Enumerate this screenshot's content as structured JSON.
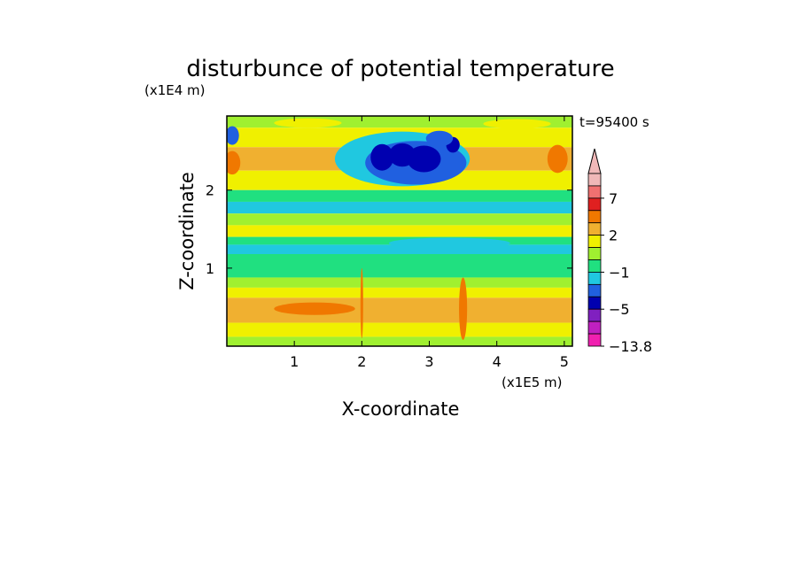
{
  "chart_data": {
    "type": "heatmap",
    "title": "disturbunce of potential temperature",
    "time_label": "t=95400 s",
    "xlabel": "X-coordinate",
    "ylabel": "Z-coordinate",
    "x_unit": "(x1E5 m)",
    "y_unit": "(x1E4 m)",
    "xlim": [
      0,
      5.12
    ],
    "ylim": [
      0,
      2.95
    ],
    "x_ticks": [
      "1",
      "2",
      "3",
      "4",
      "5"
    ],
    "y_ticks": [
      "1",
      "2"
    ],
    "colorbar_labels": [
      "7",
      "2",
      "−1",
      "−5",
      "−13.8"
    ],
    "colorbar_colors": [
      "#f0b8b8",
      "#f07070",
      "#e02020",
      "#f07800",
      "#f0b030",
      "#f0f000",
      "#a0f030",
      "#20e080",
      "#20c8e0",
      "#2060e0",
      "#0000b0",
      "#8020c0",
      "#c020c0",
      "#f020b0"
    ],
    "field": {
      "rows_top_to_bottom": [
        {
          "z_top": 2.95,
          "z_bottom": 2.8,
          "color": "#a0f030"
        },
        {
          "z_top": 2.8,
          "z_bottom": 2.55,
          "color": "#f0f000"
        },
        {
          "z_top": 2.55,
          "z_bottom": 2.25,
          "color": "#f0b030"
        },
        {
          "z_top": 2.25,
          "z_bottom": 2.0,
          "color": "#f0f000"
        },
        {
          "z_top": 2.0,
          "z_bottom": 1.85,
          "color": "#20e080"
        },
        {
          "z_top": 1.85,
          "z_bottom": 1.7,
          "color": "#20c8e0"
        },
        {
          "z_top": 1.7,
          "z_bottom": 1.55,
          "color": "#a0f030"
        },
        {
          "z_top": 1.55,
          "z_bottom": 1.4,
          "color": "#f0f000"
        },
        {
          "z_top": 1.4,
          "z_bottom": 1.3,
          "color": "#20e080"
        },
        {
          "z_top": 1.3,
          "z_bottom": 1.18,
          "color": "#20c8e0"
        },
        {
          "z_top": 1.18,
          "z_bottom": 0.88,
          "color": "#20e080"
        },
        {
          "z_top": 0.88,
          "z_bottom": 0.75,
          "color": "#a0f030"
        },
        {
          "z_top": 0.75,
          "z_bottom": 0.62,
          "color": "#f0f000"
        },
        {
          "z_top": 0.62,
          "z_bottom": 0.3,
          "color": "#f0b030"
        },
        {
          "z_top": 0.3,
          "z_bottom": 0.12,
          "color": "#f0f000"
        },
        {
          "z_top": 0.12,
          "z_bottom": 0.0,
          "color": "#a0f030"
        }
      ],
      "features": [
        {
          "kind": "ellipse",
          "x": 2.6,
          "z": 2.4,
          "rx": 1.0,
          "rz": 0.35,
          "color": "#20c8e0"
        },
        {
          "kind": "ellipse",
          "x": 2.8,
          "z": 2.35,
          "rx": 0.75,
          "rz": 0.28,
          "color": "#2060e0"
        },
        {
          "kind": "ellipse",
          "x": 2.3,
          "z": 2.42,
          "rx": 0.17,
          "rz": 0.17,
          "color": "#0000b0"
        },
        {
          "kind": "ellipse",
          "x": 2.6,
          "z": 2.45,
          "rx": 0.2,
          "rz": 0.15,
          "color": "#0000b0"
        },
        {
          "kind": "ellipse",
          "x": 2.92,
          "z": 2.4,
          "rx": 0.25,
          "rz": 0.17,
          "color": "#0000b0"
        },
        {
          "kind": "ellipse",
          "x": 3.35,
          "z": 2.58,
          "rx": 0.1,
          "rz": 0.1,
          "color": "#0000b0"
        },
        {
          "kind": "ellipse",
          "x": 3.15,
          "z": 2.66,
          "rx": 0.2,
          "rz": 0.1,
          "color": "#2060e0"
        },
        {
          "kind": "ellipse",
          "x": 0.08,
          "z": 2.7,
          "rx": 0.1,
          "rz": 0.12,
          "color": "#2060e0"
        },
        {
          "kind": "ellipse",
          "x": 0.08,
          "z": 2.35,
          "rx": 0.12,
          "rz": 0.15,
          "color": "#f07800"
        },
        {
          "kind": "ellipse",
          "x": 4.9,
          "z": 2.4,
          "rx": 0.15,
          "rz": 0.18,
          "color": "#f07800"
        },
        {
          "kind": "ellipse",
          "x": 3.3,
          "z": 1.32,
          "rx": 0.9,
          "rz": 0.07,
          "color": "#20c8e0"
        },
        {
          "kind": "ellipse",
          "x": 3.5,
          "z": 0.48,
          "rx": 0.06,
          "rz": 0.4,
          "color": "#f07800"
        },
        {
          "kind": "ellipse",
          "x": 1.3,
          "z": 0.48,
          "rx": 0.6,
          "rz": 0.08,
          "color": "#f07800"
        },
        {
          "kind": "ellipse",
          "x": 2.0,
          "z": 0.55,
          "rx": 0.02,
          "rz": 0.45,
          "color": "#f07800"
        },
        {
          "kind": "ellipse",
          "x": 4.3,
          "z": 2.85,
          "rx": 0.5,
          "rz": 0.06,
          "color": "#f0f000"
        },
        {
          "kind": "ellipse",
          "x": 1.2,
          "z": 2.86,
          "rx": 0.5,
          "rz": 0.06,
          "color": "#f0f000"
        }
      ]
    }
  }
}
